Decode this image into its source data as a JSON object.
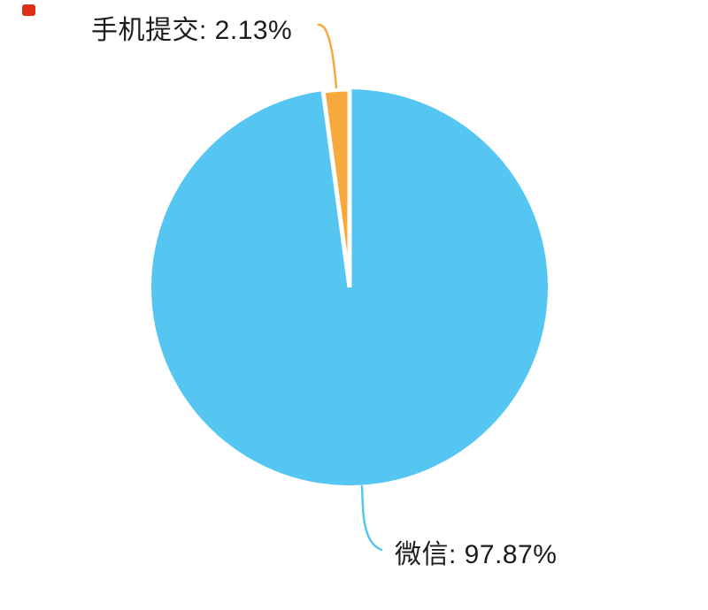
{
  "chart_data": {
    "type": "pie",
    "title": "",
    "categories": [
      "手机提交",
      "微信"
    ],
    "values": [
      2.13,
      97.87
    ],
    "unit": "%",
    "colors": [
      "#f8a93e",
      "#55c6f2"
    ],
    "labels": [
      "手机提交: 2.13%",
      "微信: 97.87%"
    ],
    "label_color": "#1c1c1c",
    "label_position": "outside",
    "leader_lines": true,
    "start_angle_deg": 90,
    "direction_of_small_slice": "counterclockwise-from-top",
    "slice_border_color": "#ffffff",
    "background": "#ffffff",
    "legend": false
  },
  "corner_mark": {
    "color": "#df2d17"
  }
}
